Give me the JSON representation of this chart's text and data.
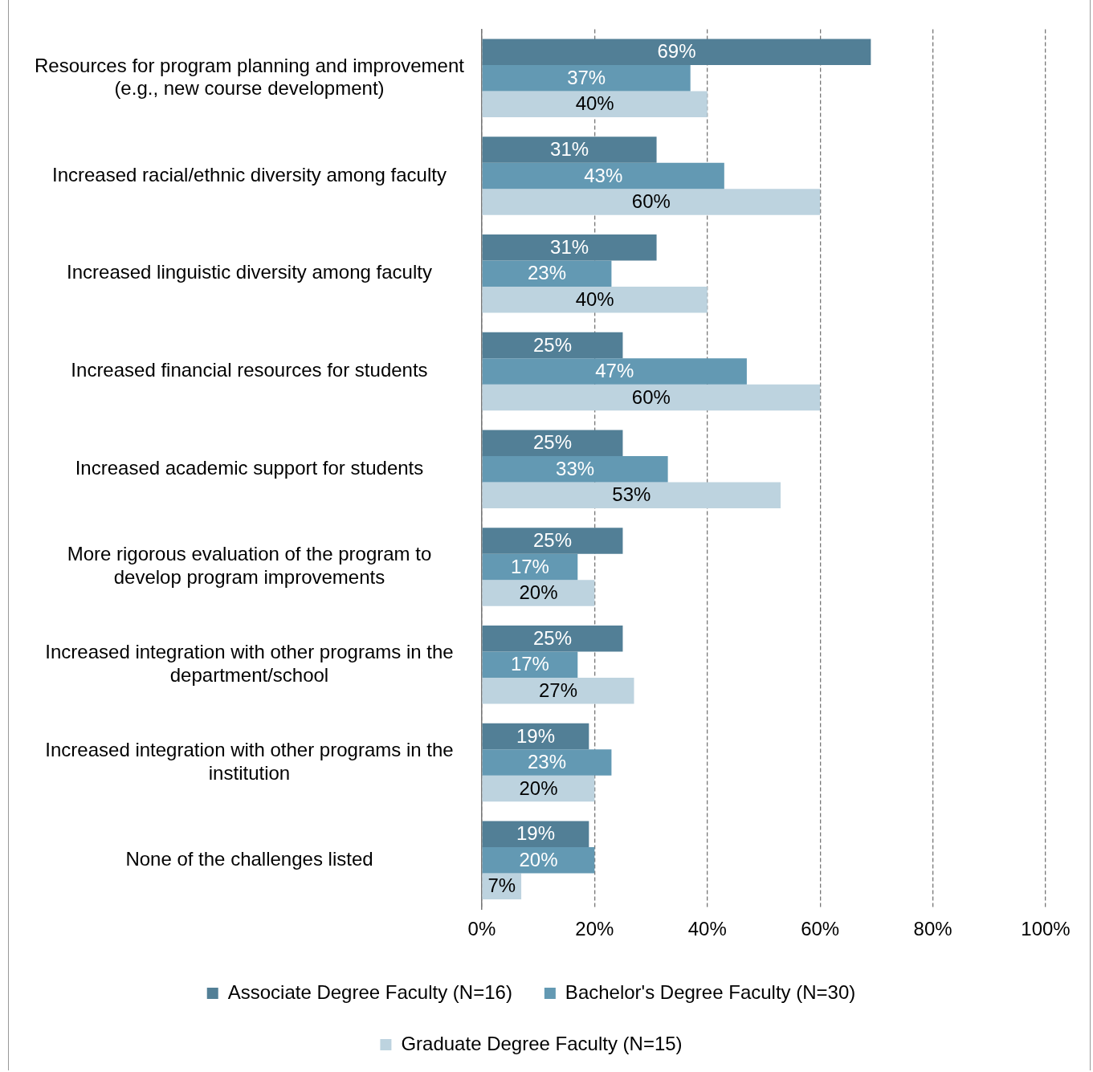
{
  "chart_data": {
    "type": "bar",
    "orientation": "horizontal",
    "categories": [
      "Resources for program planning and improvement (e.g., new course development)",
      "Increased racial/ethnic diversity among faculty",
      "Increased linguistic diversity among faculty",
      "Increased financial resources for students",
      "Increased academic support for students",
      "More rigorous evaluation of the program to develop program improvements",
      "Increased integration with other programs in the department/school",
      "Increased integration with other programs in the institution",
      "None of the challenges listed"
    ],
    "series": [
      {
        "name": "Associate Degree Faculty (N=16)",
        "color": "#527f96",
        "values": [
          69,
          31,
          31,
          25,
          25,
          25,
          25,
          19,
          19
        ],
        "value_labels": [
          "69%",
          "31%",
          "31%",
          "25%",
          "25%",
          "25%",
          "25%",
          "19%",
          "19%"
        ]
      },
      {
        "name": "Bachelor's Degree Faculty (N=30)",
        "color": "#6399b3",
        "values": [
          37,
          43,
          23,
          47,
          33,
          17,
          17,
          23,
          20
        ],
        "value_labels": [
          "37%",
          "43%",
          "23%",
          "47%",
          "33%",
          "17%",
          "17%",
          "23%",
          "20%"
        ]
      },
      {
        "name": "Graduate Degree Faculty (N=15)",
        "color": "#bdd3df",
        "values": [
          40,
          60,
          40,
          60,
          53,
          20,
          27,
          20,
          7
        ],
        "value_labels": [
          "40%",
          "60%",
          "40%",
          "60%",
          "53%",
          "20%",
          "27%",
          "20%",
          "7%"
        ]
      }
    ],
    "xlim": [
      0,
      100
    ],
    "xticks": [
      {
        "value": 0,
        "label": "0%"
      },
      {
        "value": 20,
        "label": "20%"
      },
      {
        "value": 40,
        "label": "40%"
      },
      {
        "value": 60,
        "label": "60%"
      },
      {
        "value": 80,
        "label": "80%"
      },
      {
        "value": 100,
        "label": "100%"
      }
    ],
    "grid": "x",
    "legend": "bottom"
  }
}
